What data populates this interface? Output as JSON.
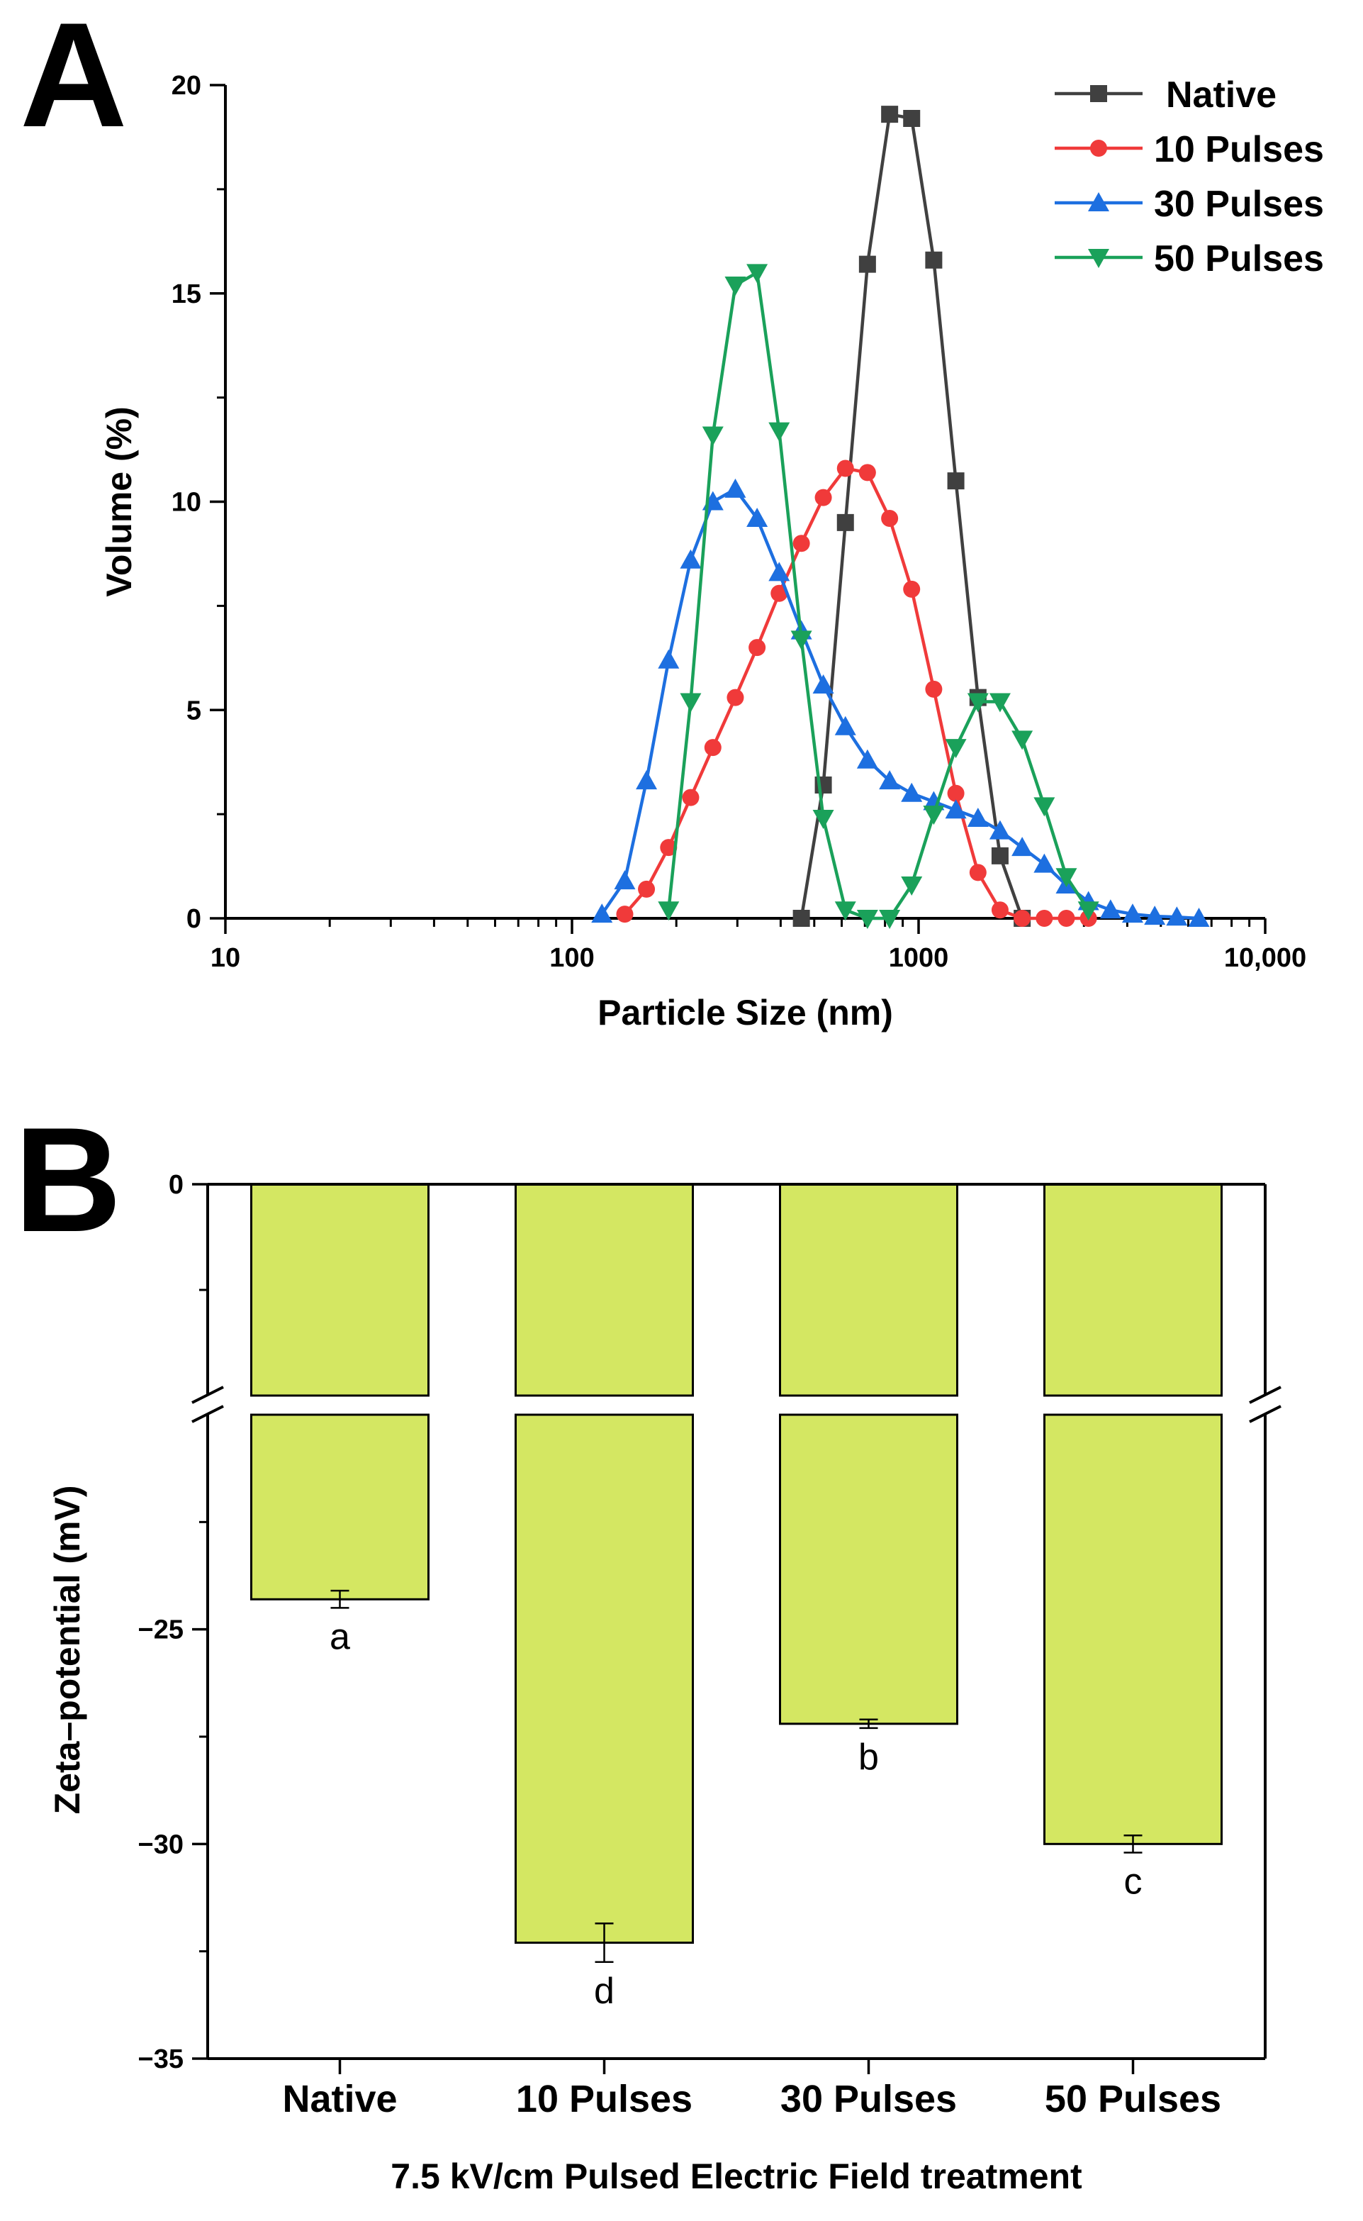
{
  "chart_data": [
    {
      "panel": "A",
      "type": "line",
      "xscale": "log",
      "xlabel": "Particle Size (nm)",
      "ylabel": "Volume (%)",
      "xlim": [
        10,
        10000
      ],
      "ylim": [
        0,
        20
      ],
      "xticks": [
        {
          "value": 10,
          "label": "10"
        },
        {
          "value": 100,
          "label": "100"
        },
        {
          "value": 1000,
          "label": "1000"
        },
        {
          "value": 10000,
          "label": "10,000"
        }
      ],
      "yticks": [
        {
          "value": 0,
          "label": "0"
        },
        {
          "value": 5,
          "label": "5"
        },
        {
          "value": 10,
          "label": "10"
        },
        {
          "value": 15,
          "label": "15"
        },
        {
          "value": 20,
          "label": "20"
        }
      ],
      "legend_position": "top-right",
      "series": [
        {
          "name": "Native",
          "color": "#404040",
          "marker": "square",
          "x": [
            459,
            531,
            615,
            712,
            825,
            955,
            1106,
            1281,
            1484,
            1718,
            1990
          ],
          "y": [
            0,
            3.2,
            9.5,
            15.7,
            19.3,
            19.2,
            15.8,
            10.5,
            5.3,
            1.5,
            0
          ]
        },
        {
          "name": "10 Pulses",
          "color": "#f03a3a",
          "marker": "circle",
          "x": [
            142,
            164,
            190,
            220,
            255,
            296,
            342,
            396,
            459,
            531,
            615,
            712,
            825,
            955,
            1106,
            1281,
            1484,
            1718,
            1990,
            2305,
            2669,
            3091
          ],
          "y": [
            0.1,
            0.7,
            1.7,
            2.9,
            4.1,
            5.3,
            6.5,
            7.8,
            9.0,
            10.1,
            10.8,
            10.7,
            9.6,
            7.9,
            5.5,
            3.0,
            1.1,
            0.2,
            0,
            0,
            0,
            0
          ]
        },
        {
          "name": "30 Pulses",
          "color": "#1d6fe0",
          "marker": "triangle-up",
          "x": [
            122,
            142,
            164,
            190,
            220,
            255,
            296,
            342,
            396,
            459,
            531,
            615,
            712,
            825,
            955,
            1106,
            1281,
            1484,
            1718,
            1990,
            2305,
            2669,
            3091,
            3580,
            4145,
            4801,
            5560,
            6439
          ],
          "y": [
            0.1,
            0.9,
            3.3,
            6.2,
            8.6,
            10.0,
            10.3,
            9.6,
            8.3,
            6.9,
            5.6,
            4.6,
            3.8,
            3.3,
            3.0,
            2.8,
            2.6,
            2.4,
            2.1,
            1.7,
            1.3,
            0.8,
            0.4,
            0.2,
            0.1,
            0.05,
            0.03,
            0
          ]
        },
        {
          "name": "50 Pulses",
          "color": "#1aa15a",
          "marker": "triangle-down",
          "x": [
            190,
            220,
            255,
            296,
            342,
            396,
            459,
            531,
            615,
            712,
            825,
            955,
            1106,
            1281,
            1484,
            1718,
            1990,
            2305,
            2669,
            3091
          ],
          "y": [
            0.2,
            5.2,
            11.6,
            15.2,
            15.5,
            11.7,
            6.7,
            2.4,
            0.2,
            0,
            0,
            0.8,
            2.5,
            4.1,
            5.2,
            5.2,
            4.3,
            2.7,
            1.0,
            0.2
          ]
        }
      ]
    },
    {
      "panel": "B",
      "type": "bar",
      "xlabel": "7.5 kV/cm  Pulsed Electric Field treatment",
      "ylabel": "Zeta–potential (mV)",
      "y_axis_break": true,
      "upper_segment_ylim": [
        -2.5,
        0
      ],
      "lower_segment_ylim": [
        -35,
        -20
      ],
      "yticks": [
        {
          "value": 0,
          "label": "0"
        },
        {
          "value": -25,
          "label": "−25"
        },
        {
          "value": -30,
          "label": "−30"
        },
        {
          "value": -35,
          "label": "−35"
        }
      ],
      "bar_color": "#d4e762",
      "categories": [
        "Native",
        "10 Pulses",
        "30 Pulses",
        "50 Pulses"
      ],
      "values": [
        -24.3,
        -32.3,
        -27.2,
        -30.0
      ],
      "errors": [
        0.2,
        0.45,
        0.1,
        0.2
      ],
      "significance_labels": [
        "a",
        "d",
        "b",
        "c"
      ]
    }
  ]
}
